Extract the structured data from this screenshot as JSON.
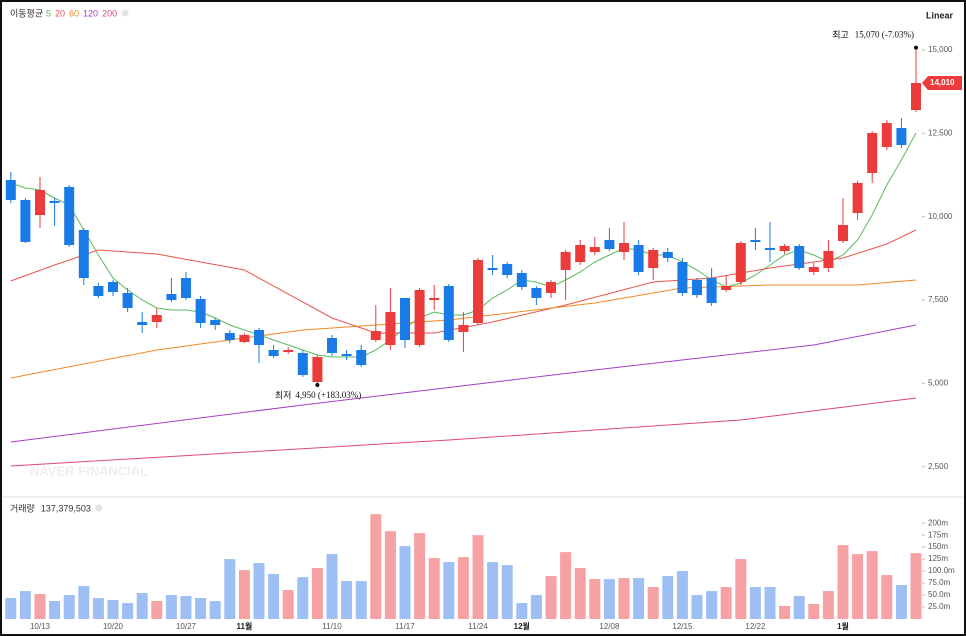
{
  "chart_data": {
    "type": "candlestick",
    "ma_label": "이동평균",
    "scale_label": "Linear",
    "watermark": "NAVER FINANCIAL",
    "categories": [
      null,
      null,
      "10/13",
      null,
      null,
      null,
      null,
      "10/20",
      null,
      null,
      null,
      null,
      "10/27",
      null,
      null,
      null,
      "11월",
      null,
      null,
      null,
      null,
      null,
      "11/10",
      null,
      null,
      null,
      null,
      "11/17",
      null,
      null,
      null,
      null,
      "11/24",
      null,
      null,
      "12월",
      null,
      null,
      null,
      null,
      null,
      "12/08",
      null,
      null,
      null,
      null,
      "12/15",
      null,
      null,
      null,
      null,
      "12/22",
      null,
      null,
      null,
      null,
      null,
      "1월",
      null,
      null,
      null,
      null,
      null
    ],
    "open": [
      11100,
      10500,
      10050,
      10470,
      10890,
      9600,
      7920,
      8040,
      7710,
      6840,
      6840,
      7680,
      8160,
      7530,
      6900,
      6510,
      6240,
      6600,
      6000,
      5940,
      5910,
      5040,
      6360,
      5880,
      6000,
      6300,
      6150,
      7560,
      6150,
      7500,
      7920,
      6540,
      6810,
      8460,
      8580,
      8310,
      7860,
      7710,
      8400,
      8640,
      8940,
      9300,
      8940,
      9150,
      8460,
      8940,
      8640,
      8100,
      8160,
      7800,
      8040,
      9300,
      9060,
      8970,
      9120,
      8340,
      8460,
      9270,
      10110,
      11310,
      12090,
      12660,
      13200
    ],
    "high": [
      11340,
      10560,
      11190,
      10560,
      10950,
      9660,
      8010,
      8100,
      7860,
      7140,
      7260,
      8160,
      8340,
      7620,
      6960,
      6600,
      6510,
      6660,
      6150,
      6090,
      6000,
      5850,
      6450,
      6000,
      6150,
      7350,
      7860,
      7560,
      7860,
      7950,
      7980,
      7140,
      8760,
      8850,
      8640,
      8400,
      7920,
      8100,
      9000,
      9300,
      9390,
      9660,
      9840,
      9300,
      9060,
      9060,
      8760,
      8160,
      8460,
      8250,
      9270,
      9660,
      9840,
      9180,
      9180,
      8610,
      9300,
      10560,
      11070,
      12570,
      12900,
      12960,
      15070
    ],
    "low": [
      10410,
      9210,
      9660,
      9720,
      9090,
      7950,
      7560,
      7620,
      7140,
      6510,
      6660,
      7440,
      7500,
      6660,
      6600,
      6210,
      6210,
      5610,
      5760,
      5880,
      5190,
      4950,
      5820,
      5700,
      5490,
      6240,
      6000,
      6060,
      6090,
      7200,
      6240,
      5940,
      6750,
      8250,
      8160,
      7800,
      7350,
      7560,
      7500,
      8550,
      8850,
      8970,
      8700,
      8250,
      8100,
      8640,
      7620,
      7560,
      7320,
      7740,
      7950,
      9000,
      8640,
      8880,
      8400,
      8250,
      8340,
      9210,
      9900,
      11010,
      12000,
      12060,
      13140
    ],
    "close": [
      10500,
      9240,
      10800,
      10410,
      9150,
      8160,
      7620,
      7740,
      7260,
      6750,
      7050,
      7500,
      7560,
      6810,
      6750,
      6300,
      6450,
      6150,
      5820,
      6000,
      5250,
      5790,
      5910,
      5820,
      5550,
      6570,
      7140,
      6300,
      7800,
      7560,
      6300,
      6750,
      8700,
      8400,
      8250,
      7890,
      7560,
      8040,
      8940,
      9150,
      9090,
      9030,
      9210,
      8340,
      9000,
      8760,
      7710,
      7650,
      7410,
      7920,
      9210,
      9240,
      9000,
      9120,
      8460,
      8490,
      8970,
      9750,
      11010,
      12510,
      12810,
      12150,
      14010
    ],
    "up_color": "#ec3b3b",
    "down_color": "#1a7be6",
    "ylim": [
      1650,
      16500
    ],
    "yticks": [
      {
        "value": 2500,
        "label": "2,500"
      },
      {
        "value": 5000,
        "label": "5,000"
      },
      {
        "value": 7500,
        "label": "7,500"
      },
      {
        "value": 10000,
        "label": "10,000"
      },
      {
        "value": 12500,
        "label": "12,500"
      },
      {
        "value": 15000,
        "label": "15,000"
      }
    ],
    "last_price_label": "14,010",
    "high_annotation": {
      "label": "최고",
      "text": "15,070 (-7.03%)"
    },
    "low_annotation": {
      "label": "최저",
      "text": "4,950 (+183.03%)"
    },
    "moving_averages": [
      {
        "name": "5",
        "color": "#5cb85c",
        "values": [
          11010,
          10860,
          10800,
          10560,
          10350,
          9600,
          8850,
          8160,
          7800,
          7500,
          7260,
          7200,
          7200,
          7140,
          6960,
          6750,
          6600,
          6450,
          6300,
          6150,
          6000,
          5850,
          5790,
          5790,
          5790,
          6000,
          6300,
          6660,
          6960,
          7140,
          7050,
          7050,
          7200,
          7560,
          7800,
          8100,
          8040,
          7890,
          8100,
          8340,
          8640,
          8850,
          9060,
          9000,
          8850,
          8850,
          8640,
          8400,
          8100,
          7890,
          8010,
          8250,
          8550,
          8850,
          9000,
          8850,
          8640,
          8850,
          9300,
          10050,
          10950,
          11700,
          12510
        ]
      },
      {
        "name": "20",
        "color": "#e8554e",
        "x": [
          0,
          3,
          6,
          10,
          16,
          22,
          25,
          29,
          33,
          38,
          44,
          48,
          52,
          57,
          60,
          62
        ],
        "values": [
          8070,
          8550,
          9000,
          8880,
          8400,
          6960,
          6510,
          6510,
          6840,
          7350,
          8040,
          8160,
          8460,
          8760,
          9180,
          9600
        ]
      },
      {
        "name": "60",
        "color": "#f08a24",
        "x": [
          0,
          10,
          20,
          30,
          40,
          46,
          52,
          58,
          62
        ],
        "values": [
          5160,
          6000,
          6600,
          6900,
          7410,
          7860,
          7950,
          7950,
          8100
        ]
      },
      {
        "name": "120",
        "color": "#a040c8",
        "x": [
          0,
          20,
          40,
          55,
          62
        ],
        "values": [
          3240,
          4350,
          5400,
          6150,
          6750
        ]
      },
      {
        "name": "200",
        "color": "#e0457b",
        "x": [
          0,
          30,
          50,
          62
        ],
        "values": [
          2520,
          3300,
          3900,
          4560
        ]
      }
    ],
    "volume": {
      "label": "거래량",
      "latest_label": "137,379,503",
      "up_color": "#f6a1a4",
      "down_color": "#9dbff4",
      "values": [
        43800000,
        58300000,
        52100000,
        37500000,
        50000000,
        68800000,
        43800000,
        39600000,
        33300000,
        54200000,
        37500000,
        50000000,
        47900000,
        43800000,
        37500000,
        125000000,
        102100000,
        116700000,
        93800000,
        60400000,
        87500000,
        106300000,
        135400000,
        79200000,
        79200000,
        218800000,
        183300000,
        152100000,
        179200000,
        127100000,
        118800000,
        129200000,
        175000000,
        118800000,
        112500000,
        33300000,
        50000000,
        89600000,
        139600000,
        106300000,
        83300000,
        83300000,
        85400000,
        85400000,
        66700000,
        89600000,
        100000000,
        50000000,
        58300000,
        66700000,
        125000000,
        66700000,
        66700000,
        27100000,
        47900000,
        31300000,
        58300000,
        154200000,
        135400000,
        141700000,
        91700000,
        70800000,
        137379503
      ],
      "ylim": [
        0,
        240000000
      ],
      "yticks": [
        {
          "value": 25000000,
          "label": "25.0m"
        },
        {
          "value": 50000000,
          "label": "50.0m"
        },
        {
          "value": 75000000,
          "label": "75.0m"
        },
        {
          "value": 100000000,
          "label": "100.0m"
        },
        {
          "value": 125000000,
          "label": "125m"
        },
        {
          "value": 150000000,
          "label": "150m"
        },
        {
          "value": 175000000,
          "label": "175m"
        },
        {
          "value": 200000000,
          "label": "200m"
        }
      ]
    }
  }
}
